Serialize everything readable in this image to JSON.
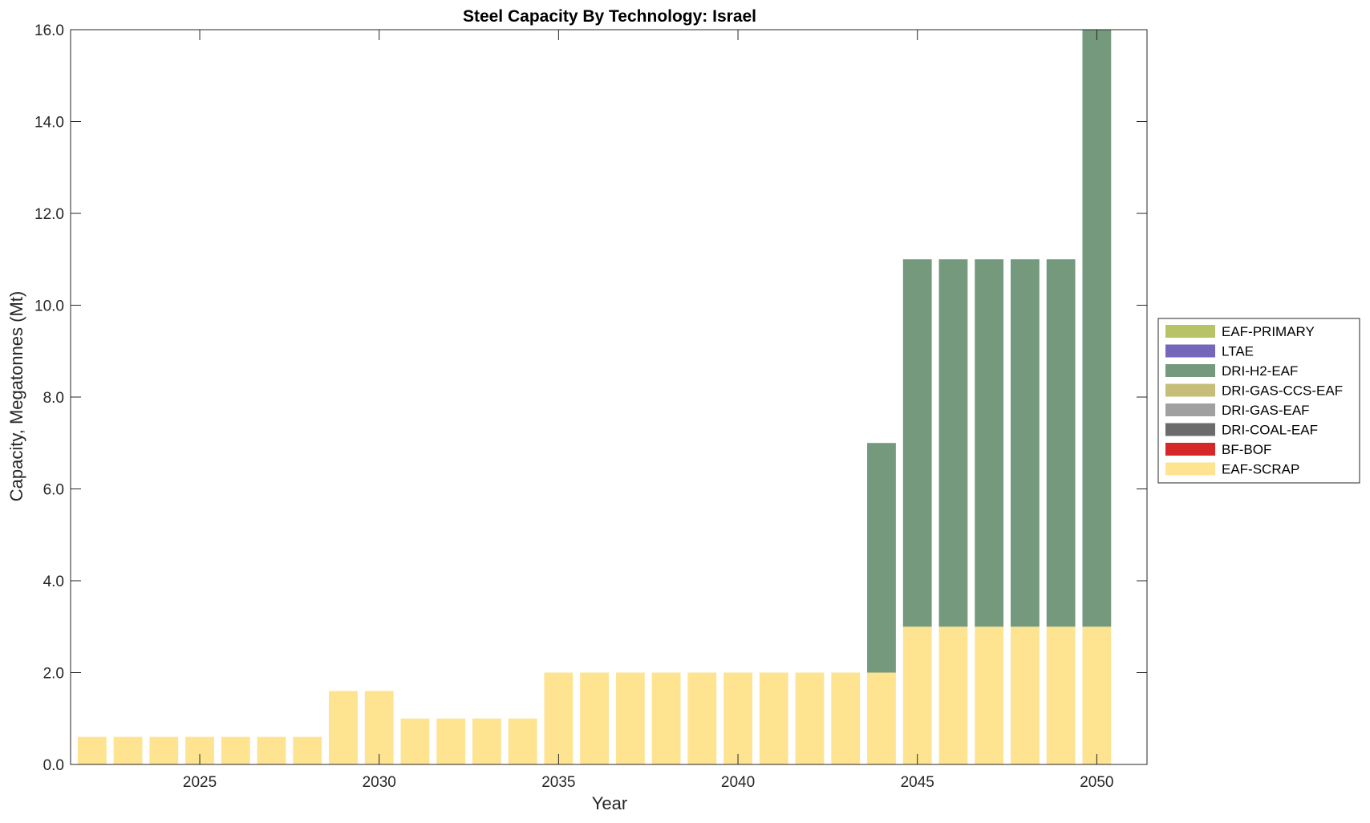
{
  "chart_data": {
    "type": "bar",
    "stacked": true,
    "title": "Steel Capacity By Technology: Israel",
    "xlabel": "Year",
    "ylabel": "Capacity, Megatonnes (Mt)",
    "x": [
      2022,
      2023,
      2024,
      2025,
      2026,
      2027,
      2028,
      2029,
      2030,
      2031,
      2032,
      2033,
      2034,
      2035,
      2036,
      2037,
      2038,
      2039,
      2040,
      2041,
      2042,
      2043,
      2044,
      2045,
      2046,
      2047,
      2048,
      2049,
      2050
    ],
    "xticks": [
      "2025",
      "2030",
      "2035",
      "2040",
      "2045",
      "2050"
    ],
    "xtick_values": [
      2025,
      2030,
      2035,
      2040,
      2045,
      2050
    ],
    "yticks": [
      "0.0",
      "2.0",
      "4.0",
      "6.0",
      "8.0",
      "10.0",
      "12.0",
      "14.0",
      "16.0"
    ],
    "ylim": [
      0,
      16
    ],
    "xlim": [
      2021.4,
      2051.4
    ],
    "grid": false,
    "legend_position": "right",
    "series": [
      {
        "name": "EAF-SCRAP",
        "color": "#fee391",
        "values": [
          0.6,
          0.6,
          0.6,
          0.6,
          0.6,
          0.6,
          0.6,
          1.6,
          1.6,
          1.0,
          1.0,
          1.0,
          1.0,
          2.0,
          2.0,
          2.0,
          2.0,
          2.0,
          2.0,
          2.0,
          2.0,
          2.0,
          2.0,
          3.0,
          3.0,
          3.0,
          3.0,
          3.0,
          3.0
        ]
      },
      {
        "name": "BF-BOF",
        "color": "#d62728",
        "values": [
          0,
          0,
          0,
          0,
          0,
          0,
          0,
          0,
          0,
          0,
          0,
          0,
          0,
          0,
          0,
          0,
          0,
          0,
          0,
          0,
          0,
          0,
          0,
          0,
          0,
          0,
          0,
          0,
          0
        ]
      },
      {
        "name": "DRI-COAL-EAF",
        "color": "#6b6b6b",
        "values": [
          0,
          0,
          0,
          0,
          0,
          0,
          0,
          0,
          0,
          0,
          0,
          0,
          0,
          0,
          0,
          0,
          0,
          0,
          0,
          0,
          0,
          0,
          0,
          0,
          0,
          0,
          0,
          0,
          0
        ]
      },
      {
        "name": "DRI-GAS-EAF",
        "color": "#a0a0a0",
        "values": [
          0,
          0,
          0,
          0,
          0,
          0,
          0,
          0,
          0,
          0,
          0,
          0,
          0,
          0,
          0,
          0,
          0,
          0,
          0,
          0,
          0,
          0,
          0,
          0,
          0,
          0,
          0,
          0,
          0
        ]
      },
      {
        "name": "DRI-GAS-CCS-EAF",
        "color": "#c6bd7a",
        "values": [
          0,
          0,
          0,
          0,
          0,
          0,
          0,
          0,
          0,
          0,
          0,
          0,
          0,
          0,
          0,
          0,
          0,
          0,
          0,
          0,
          0,
          0,
          0,
          0,
          0,
          0,
          0,
          0,
          0
        ]
      },
      {
        "name": "DRI-H2-EAF",
        "color": "#74997c",
        "values": [
          0,
          0,
          0,
          0,
          0,
          0,
          0,
          0,
          0,
          0,
          0,
          0,
          0,
          0,
          0,
          0,
          0,
          0,
          0,
          0,
          0,
          0,
          5.0,
          8.0,
          8.0,
          8.0,
          8.0,
          8.0,
          13.0
        ]
      },
      {
        "name": "LTAE",
        "color": "#7466b8",
        "values": [
          0,
          0,
          0,
          0,
          0,
          0,
          0,
          0,
          0,
          0,
          0,
          0,
          0,
          0,
          0,
          0,
          0,
          0,
          0,
          0,
          0,
          0,
          0,
          0,
          0,
          0,
          0,
          0,
          0
        ]
      },
      {
        "name": "EAF-PRIMARY",
        "color": "#b8c267",
        "values": [
          0,
          0,
          0,
          0,
          0,
          0,
          0,
          0,
          0,
          0,
          0,
          0,
          0,
          0,
          0,
          0,
          0,
          0,
          0,
          0,
          0,
          0,
          0,
          0,
          0,
          0,
          0,
          0,
          0
        ]
      }
    ],
    "legend_order": [
      "EAF-PRIMARY",
      "LTAE",
      "DRI-H2-EAF",
      "DRI-GAS-CCS-EAF",
      "DRI-GAS-EAF",
      "DRI-COAL-EAF",
      "BF-BOF",
      "EAF-SCRAP"
    ]
  }
}
